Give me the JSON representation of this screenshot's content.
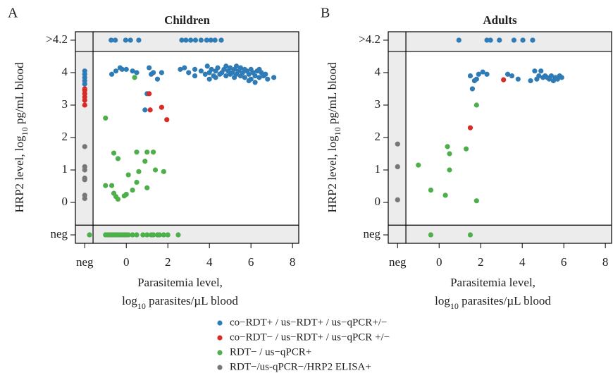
{
  "chart_data": [
    {
      "type": "scatter",
      "panel": "A",
      "title": "Children",
      "ylabel_parts": [
        "HRP2 level, log",
        "10",
        " pg/mL blood"
      ],
      "xlabel_line1": "Parasitemia level,",
      "xlabel_parts": [
        "log",
        "10",
        " parasites/µL blood"
      ],
      "xlim": [
        -2.45,
        8.3
      ],
      "ylim": [
        -1.26,
        5.26
      ],
      "xticks": [
        {
          "value": -2,
          "label": "neg"
        },
        0,
        2,
        4,
        6,
        8
      ],
      "yticks": [
        {
          "value": -1,
          "label": "neg"
        },
        0,
        1,
        2,
        3,
        4,
        {
          "value": 5,
          "label": ">4.2"
        }
      ],
      "series": [
        {
          "name": "co−RDT+ / us−RDT+ / us−qPCR+/−",
          "color": "#2f7bb6",
          "x": [
            -2,
            -2,
            -2,
            -2,
            -2,
            -0.73,
            -0.53,
            -0.03,
            0.2,
            0.6,
            2.67,
            2.87,
            3.1,
            3.33,
            3.6,
            3.87,
            4.07,
            4.27,
            4.57,
            -0.5,
            -0.3,
            -0.2,
            0,
            -0.7,
            0.3,
            1.1,
            1.3,
            1.5,
            1.0,
            0.9,
            0.5,
            1.7,
            1.2,
            2.6,
            2.8,
            3.0,
            3.3,
            3.6,
            3.8,
            3.9,
            4.0,
            4.1,
            4.2,
            4.3,
            4.4,
            4.5,
            4.6,
            4.7,
            4.8,
            4.9,
            5.0,
            5.0,
            5.1,
            5.2,
            5.2,
            5.3,
            5.4,
            5.5,
            5.5,
            5.6,
            5.7,
            5.8,
            5.9,
            6.0,
            6.0,
            6.1,
            6.2,
            6.3,
            6.4,
            6.5,
            6.6,
            6.8,
            7.1,
            4.3,
            5.3,
            5.7,
            6.2,
            4.8,
            3.3,
            6.4,
            5.9,
            6.7,
            4.0
          ],
          "values": [
            4.05,
            3.95,
            3.85,
            3.75,
            3.65,
            5,
            5,
            5,
            5,
            5,
            5,
            5,
            5,
            5,
            5,
            5,
            5,
            5,
            5,
            4.05,
            4.15,
            4.1,
            4.1,
            3.95,
            4.05,
            4.15,
            4.0,
            3.8,
            3.35,
            2.85,
            4.0,
            4.0,
            3.95,
            4.1,
            4.15,
            4.0,
            4.1,
            4.05,
            3.95,
            4.2,
            4.0,
            4.1,
            3.9,
            4.05,
            4.15,
            3.95,
            4.0,
            4.1,
            3.9,
            4.05,
            4.15,
            3.95,
            4.0,
            3.85,
            4.1,
            3.95,
            4.05,
            3.9,
            4.15,
            4.0,
            3.85,
            4.05,
            3.95,
            4.1,
            3.8,
            4.0,
            3.9,
            4.05,
            3.85,
            4.0,
            3.9,
            3.8,
            3.85,
            3.85,
            4.2,
            4.1,
            3.7,
            4.2,
            3.9,
            4.1,
            3.75,
            3.95,
            3.8
          ]
        },
        {
          "name": "co−RDT− / us−RDT+ / us−qPCR +/−",
          "color": "#d92b26",
          "x": [
            -2,
            -2,
            -2,
            -2,
            -2,
            -2,
            1.1,
            1.15,
            1.7,
            1.95
          ],
          "values": [
            3.5,
            3.45,
            3.35,
            3.25,
            3.15,
            3.0,
            3.35,
            2.85,
            2.93,
            2.55
          ]
        },
        {
          "name": "RDT− / us−qPCR+",
          "color": "#4daf4a",
          "x": [
            -1.77,
            -1.0,
            -0.9,
            -0.8,
            -0.7,
            -0.6,
            -0.5,
            -0.4,
            -0.3,
            -0.2,
            -0.1,
            0.0,
            0.1,
            0.3,
            0.5,
            0.8,
            1.0,
            1.2,
            1.3,
            1.5,
            1.6,
            1.8,
            2.0,
            2.5,
            -1.0,
            -0.6,
            -0.4,
            0.4,
            0.5,
            -1.0,
            -0.7,
            -0.6,
            -0.5,
            -0.4,
            -0.1,
            0.0,
            0.3,
            0.5,
            0.6,
            0.9,
            1.0,
            1.0,
            1.3,
            1.4,
            1.8,
            0.1
          ],
          "values": [
            -1,
            -1,
            -1,
            -1,
            -1,
            -1,
            -1,
            -1,
            -1,
            -1,
            -1,
            -1,
            -1,
            -1,
            -1,
            -1,
            -1,
            -1,
            -1,
            -1,
            -1,
            -1,
            -1,
            -1,
            2.6,
            1.52,
            1.35,
            3.85,
            1.55,
            0.52,
            0.52,
            0.28,
            0.18,
            0.1,
            0.2,
            0.25,
            0.38,
            0.62,
            0.95,
            1.27,
            1.55,
            0.45,
            1.55,
            1.0,
            0.95,
            0.85
          ]
        },
        {
          "name": "RDT−/us-qPCR−/HRP2 ELISA+",
          "color": "#777777",
          "x": [
            -2,
            -2,
            -2,
            -2,
            -2,
            -2,
            -2
          ],
          "values": [
            1.72,
            1.1,
            1.0,
            0.75,
            0.7,
            0.22,
            0.12
          ]
        }
      ]
    },
    {
      "type": "scatter",
      "panel": "B",
      "title": "Adults",
      "ylabel_parts": [
        "HRP2 level, log",
        "10",
        " pg/mL blood"
      ],
      "xlabel_line1": "Parasitemia level,",
      "xlabel_parts": [
        "log",
        "10",
        " parasites/µL blood"
      ],
      "xlim": [
        -2.45,
        8.3
      ],
      "ylim": [
        -1.26,
        5.26
      ],
      "xticks": [
        {
          "value": -2,
          "label": "neg"
        },
        0,
        2,
        4,
        6,
        8
      ],
      "yticks": [
        {
          "value": -1,
          "label": "neg"
        },
        0,
        1,
        2,
        3,
        4,
        {
          "value": 5,
          "label": ">4.2"
        }
      ],
      "series": [
        {
          "color": "#2f7bb6",
          "x": [
            0.95,
            2.3,
            2.47,
            2.9,
            3.6,
            4.03,
            4.5,
            1.5,
            1.7,
            1.6,
            1.9,
            2.1,
            2.3,
            1.8,
            3.3,
            3.5,
            3.8,
            4.4,
            4.6,
            4.8,
            4.9,
            5.0,
            5.2,
            5.3,
            5.4,
            5.5,
            5.6,
            5.7,
            5.8,
            5.9,
            4.7,
            5.1
          ],
          "values": [
            5,
            5,
            5,
            5,
            5,
            5,
            5,
            3.9,
            3.75,
            3.5,
            3.95,
            4.02,
            3.95,
            3.8,
            3.95,
            3.9,
            3.8,
            3.75,
            4.05,
            3.9,
            4.05,
            3.85,
            3.85,
            3.8,
            3.9,
            3.75,
            3.85,
            3.8,
            3.9,
            3.85,
            3.8,
            3.9
          ]
        },
        {
          "color": "#d92b26",
          "x": [
            3.1,
            1.5
          ],
          "values": [
            3.78,
            2.3
          ]
        },
        {
          "color": "#4daf4a",
          "x": [
            -1.0,
            -0.4,
            0.3,
            0.4,
            0.5,
            0.5,
            1.3,
            1.8,
            1.8,
            -0.4,
            1.5
          ],
          "values": [
            1.15,
            0.38,
            0.22,
            1.72,
            1.5,
            1.0,
            1.65,
            3.0,
            0.05,
            -1,
            -1
          ]
        },
        {
          "color": "#777777",
          "x": [
            -2,
            -2,
            -2
          ],
          "values": [
            1.8,
            1.1,
            0.08
          ]
        }
      ]
    }
  ]
}
